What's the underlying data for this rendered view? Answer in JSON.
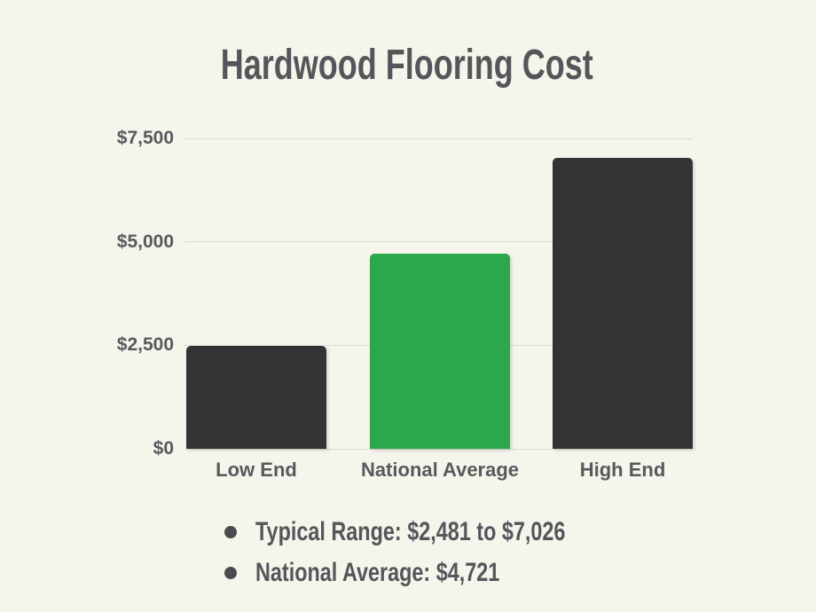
{
  "page": {
    "background_color": "#F5F5EC",
    "text_color": "#58595B",
    "gridline_color": "#DBDBD3"
  },
  "chart_data": {
    "type": "bar",
    "title": "Hardwood Flooring Cost",
    "categories": [
      "Low End",
      "National Average",
      "High End"
    ],
    "values": [
      2481,
      4721,
      7026
    ],
    "bar_colors": [
      "#333333",
      "#2BA84E",
      "#333333"
    ],
    "xlabel": "",
    "ylabel": "",
    "ylim": [
      0,
      7500
    ],
    "yticks": [
      {
        "value": 0,
        "label": "$0"
      },
      {
        "value": 2500,
        "label": "$2,500"
      },
      {
        "value": 5000,
        "label": "$5,000"
      },
      {
        "value": 7500,
        "label": "$7,500"
      }
    ],
    "grid": true,
    "legend": false
  },
  "notes": [
    "Typical Range: $2,481 to $7,026",
    "National Average: $4,721"
  ]
}
